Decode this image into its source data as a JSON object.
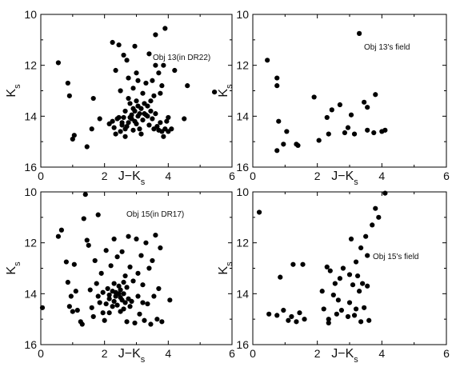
{
  "chart_data": [
    {
      "type": "scatter",
      "annotation": "Obj 13(in DR22)",
      "xlabel": "J−K",
      "xlabel_sub": "s",
      "ylabel": "K",
      "ylabel_sub": "s",
      "xlim": [
        0,
        6
      ],
      "ylim": [
        16,
        10
      ],
      "y_inverted": true,
      "xticks": [
        "0",
        "2",
        "4",
        "6"
      ],
      "yticks": [
        "10",
        "12",
        "14",
        "16"
      ],
      "grid": false,
      "points": [
        [
          0.55,
          11.9
        ],
        [
          0.85,
          12.7
        ],
        [
          0.9,
          13.2
        ],
        [
          1.0,
          14.9
        ],
        [
          1.05,
          14.75
        ],
        [
          1.45,
          15.2
        ],
        [
          1.6,
          14.5
        ],
        [
          1.65,
          13.3
        ],
        [
          1.85,
          14.1
        ],
        [
          2.25,
          11.1
        ],
        [
          2.45,
          11.2
        ],
        [
          2.35,
          12.2
        ],
        [
          2.5,
          13.0
        ],
        [
          2.5,
          14.6
        ],
        [
          2.55,
          14.35
        ],
        [
          2.6,
          11.6
        ],
        [
          2.65,
          14.8
        ],
        [
          2.7,
          11.8
        ],
        [
          2.75,
          12.5
        ],
        [
          2.75,
          13.3
        ],
        [
          2.8,
          13.5
        ],
        [
          2.85,
          14.1
        ],
        [
          2.9,
          12.9
        ],
        [
          2.95,
          11.25
        ],
        [
          2.95,
          13.8
        ],
        [
          3.0,
          12.3
        ],
        [
          3.0,
          14.3
        ],
        [
          3.05,
          13.6
        ],
        [
          3.1,
          14.5
        ],
        [
          3.15,
          14.7
        ],
        [
          3.2,
          13.1
        ],
        [
          3.25,
          13.9
        ],
        [
          3.3,
          12.7
        ],
        [
          3.35,
          14.0
        ],
        [
          3.4,
          11.55
        ],
        [
          3.45,
          13.4
        ],
        [
          3.5,
          12.6
        ],
        [
          3.55,
          14.5
        ],
        [
          3.6,
          10.8
        ],
        [
          3.7,
          12.3
        ],
        [
          3.75,
          13.1
        ],
        [
          3.8,
          12.8
        ],
        [
          3.85,
          12.0
        ],
        [
          3.9,
          10.55
        ],
        [
          3.95,
          14.2
        ],
        [
          4.0,
          14.6
        ],
        [
          4.2,
          12.2
        ],
        [
          4.5,
          14.1
        ],
        [
          4.6,
          12.8
        ],
        [
          5.45,
          13.05
        ],
        [
          2.15,
          14.3
        ],
        [
          2.25,
          14.2
        ],
        [
          2.3,
          14.45
        ],
        [
          2.4,
          14.1
        ],
        [
          2.45,
          14.05
        ],
        [
          2.55,
          14.25
        ],
        [
          2.6,
          14.05
        ],
        [
          2.65,
          13.8
        ],
        [
          2.7,
          14.4
        ],
        [
          2.75,
          14.25
        ],
        [
          2.8,
          14.05
        ],
        [
          2.85,
          13.95
        ],
        [
          2.9,
          13.7
        ],
        [
          2.95,
          14.2
        ],
        [
          3.0,
          13.4
        ],
        [
          3.05,
          14.0
        ],
        [
          3.1,
          13.9
        ],
        [
          3.15,
          13.7
        ],
        [
          3.2,
          14.15
        ],
        [
          3.25,
          13.5
        ],
        [
          3.3,
          13.95
        ],
        [
          3.35,
          13.6
        ],
        [
          3.4,
          14.35
        ],
        [
          3.45,
          13.8
        ],
        [
          3.5,
          14.1
        ],
        [
          3.55,
          13.2
        ],
        [
          3.6,
          13.9
        ],
        [
          3.65,
          14.4
        ],
        [
          3.7,
          14.55
        ],
        [
          3.75,
          14.25
        ],
        [
          3.8,
          14.6
        ],
        [
          3.85,
          14.8
        ],
        [
          3.9,
          14.5
        ],
        [
          4.0,
          14.05
        ],
        [
          4.1,
          14.5
        ],
        [
          3.05,
          12.6
        ],
        [
          3.6,
          12.0
        ],
        [
          2.9,
          14.55
        ],
        [
          2.35,
          14.7
        ],
        [
          2.65,
          14.5
        ]
      ]
    },
    {
      "type": "scatter",
      "annotation": "Obj 13's field",
      "xlabel": "J−K",
      "xlabel_sub": "s",
      "ylabel": "K",
      "ylabel_sub": "s",
      "xlim": [
        0,
        6
      ],
      "ylim": [
        16,
        10
      ],
      "y_inverted": true,
      "xticks": [
        "0",
        "2",
        "4",
        "6"
      ],
      "yticks": [
        "10",
        "12",
        "14",
        "16"
      ],
      "grid": false,
      "points": [
        [
          0.45,
          11.8
        ],
        [
          0.75,
          12.5
        ],
        [
          0.75,
          12.8
        ],
        [
          0.8,
          14.2
        ],
        [
          0.75,
          15.35
        ],
        [
          0.95,
          15.1
        ],
        [
          1.05,
          14.6
        ],
        [
          1.35,
          15.1
        ],
        [
          1.4,
          15.15
        ],
        [
          1.9,
          13.25
        ],
        [
          2.05,
          14.95
        ],
        [
          2.3,
          14.05
        ],
        [
          2.35,
          14.7
        ],
        [
          2.45,
          13.75
        ],
        [
          2.7,
          13.55
        ],
        [
          2.85,
          14.65
        ],
        [
          2.95,
          14.45
        ],
        [
          3.05,
          13.95
        ],
        [
          3.15,
          14.7
        ],
        [
          3.3,
          10.75
        ],
        [
          3.45,
          13.45
        ],
        [
          3.55,
          13.65
        ],
        [
          3.55,
          14.55
        ],
        [
          3.75,
          14.65
        ],
        [
          3.8,
          13.15
        ],
        [
          4.0,
          14.6
        ],
        [
          4.1,
          14.55
        ]
      ]
    },
    {
      "type": "scatter",
      "annotation": "Obj 15(in DR17)",
      "xlabel": "J−K",
      "xlabel_sub": "s",
      "ylabel": "K",
      "ylabel_sub": "s",
      "xlim": [
        0,
        6
      ],
      "ylim": [
        16,
        10
      ],
      "y_inverted": true,
      "xticks": [
        "0",
        "2",
        "4",
        "6"
      ],
      "yticks": [
        "10",
        "12",
        "14",
        "16"
      ],
      "grid": false,
      "points": [
        [
          0.05,
          14.55
        ],
        [
          0.55,
          11.75
        ],
        [
          0.65,
          11.5
        ],
        [
          0.8,
          12.75
        ],
        [
          0.85,
          13.55
        ],
        [
          0.9,
          14.5
        ],
        [
          0.95,
          14.1
        ],
        [
          1.0,
          14.7
        ],
        [
          1.05,
          12.85
        ],
        [
          1.1,
          13.9
        ],
        [
          1.15,
          14.65
        ],
        [
          1.25,
          15.1
        ],
        [
          1.3,
          15.2
        ],
        [
          1.35,
          11.05
        ],
        [
          1.4,
          10.1
        ],
        [
          1.45,
          11.9
        ],
        [
          1.5,
          12.1
        ],
        [
          1.55,
          13.85
        ],
        [
          1.6,
          14.55
        ],
        [
          1.65,
          14.9
        ],
        [
          1.7,
          12.7
        ],
        [
          1.75,
          13.6
        ],
        [
          1.8,
          10.9
        ],
        [
          1.85,
          14.35
        ],
        [
          1.9,
          13.2
        ],
        [
          1.95,
          14.75
        ],
        [
          2.0,
          15.05
        ],
        [
          2.05,
          12.3
        ],
        [
          2.1,
          13.8
        ],
        [
          2.15,
          14.2
        ],
        [
          2.2,
          12.9
        ],
        [
          2.25,
          14.5
        ],
        [
          2.3,
          11.85
        ],
        [
          2.35,
          13.95
        ],
        [
          2.4,
          12.55
        ],
        [
          2.45,
          13.7
        ],
        [
          2.5,
          14.15
        ],
        [
          2.55,
          12.35
        ],
        [
          2.6,
          14.6
        ],
        [
          2.65,
          13.3
        ],
        [
          2.7,
          15.1
        ],
        [
          2.75,
          11.75
        ],
        [
          2.8,
          12.95
        ],
        [
          2.85,
          14.3
        ],
        [
          2.9,
          13.5
        ],
        [
          2.95,
          15.15
        ],
        [
          3.0,
          11.85
        ],
        [
          3.05,
          13.2
        ],
        [
          3.1,
          14.8
        ],
        [
          3.15,
          12.5
        ],
        [
          3.2,
          13.65
        ],
        [
          3.25,
          15.05
        ],
        [
          3.3,
          12.0
        ],
        [
          3.35,
          14.4
        ],
        [
          3.4,
          13.0
        ],
        [
          3.45,
          15.2
        ],
        [
          3.5,
          12.7
        ],
        [
          3.55,
          14.1
        ],
        [
          3.6,
          11.7
        ],
        [
          3.65,
          15.0
        ],
        [
          3.7,
          13.8
        ],
        [
          3.75,
          12.2
        ],
        [
          3.8,
          15.1
        ],
        [
          4.05,
          14.25
        ],
        [
          2.15,
          14.05
        ],
        [
          2.25,
          13.9
        ],
        [
          2.3,
          14.3
        ],
        [
          2.35,
          14.1
        ],
        [
          2.4,
          14.45
        ],
        [
          2.45,
          14.0
        ],
        [
          2.5,
          13.85
        ],
        [
          2.55,
          14.25
        ],
        [
          2.6,
          14.0
        ],
        [
          2.65,
          14.35
        ],
        [
          2.7,
          13.75
        ],
        [
          2.75,
          14.2
        ],
        [
          2.8,
          14.5
        ],
        [
          2.3,
          13.6
        ],
        [
          2.6,
          13.55
        ],
        [
          1.8,
          14.1
        ],
        [
          1.95,
          13.95
        ],
        [
          2.05,
          14.4
        ],
        [
          3.05,
          14.1
        ],
        [
          3.2,
          14.35
        ],
        [
          2.15,
          14.75
        ],
        [
          2.5,
          14.7
        ]
      ]
    },
    {
      "type": "scatter",
      "annotation": "Obj 15's field",
      "xlabel": "J−K",
      "xlabel_sub": "s",
      "ylabel": "K",
      "ylabel_sub": "s",
      "xlim": [
        0,
        6
      ],
      "ylim": [
        16,
        10
      ],
      "y_inverted": true,
      "xticks": [
        "0",
        "2",
        "4",
        "6"
      ],
      "yticks": [
        "10",
        "12",
        "14",
        "16"
      ],
      "grid": false,
      "points": [
        [
          0.2,
          10.8
        ],
        [
          0.5,
          14.8
        ],
        [
          0.75,
          14.85
        ],
        [
          0.85,
          13.35
        ],
        [
          0.95,
          14.65
        ],
        [
          1.1,
          15.05
        ],
        [
          1.2,
          14.9
        ],
        [
          1.25,
          12.85
        ],
        [
          1.35,
          15.1
        ],
        [
          1.45,
          14.75
        ],
        [
          1.55,
          12.85
        ],
        [
          1.6,
          15.0
        ],
        [
          2.15,
          13.9
        ],
        [
          2.2,
          14.6
        ],
        [
          2.3,
          12.95
        ],
        [
          2.35,
          15.0
        ],
        [
          2.35,
          15.15
        ],
        [
          2.4,
          13.1
        ],
        [
          2.5,
          14.05
        ],
        [
          2.55,
          13.6
        ],
        [
          2.6,
          14.8
        ],
        [
          2.65,
          14.25
        ],
        [
          2.7,
          13.4
        ],
        [
          2.75,
          14.65
        ],
        [
          2.8,
          13.0
        ],
        [
          2.95,
          14.9
        ],
        [
          3.0,
          14.35
        ],
        [
          3.05,
          11.85
        ],
        [
          3.1,
          13.65
        ],
        [
          3.15,
          14.85
        ],
        [
          3.2,
          12.75
        ],
        [
          3.25,
          13.3
        ],
        [
          3.3,
          13.9
        ],
        [
          3.35,
          15.1
        ],
        [
          3.35,
          12.2
        ],
        [
          3.4,
          13.6
        ],
        [
          3.45,
          14.55
        ],
        [
          3.5,
          11.75
        ],
        [
          3.55,
          12.5
        ],
        [
          3.6,
          15.05
        ],
        [
          3.7,
          11.3
        ],
        [
          3.8,
          10.65
        ],
        [
          3.9,
          11.0
        ],
        [
          4.1,
          10.05
        ],
        [
          3.0,
          13.25
        ],
        [
          3.2,
          14.6
        ],
        [
          3.55,
          13.7
        ]
      ]
    }
  ]
}
